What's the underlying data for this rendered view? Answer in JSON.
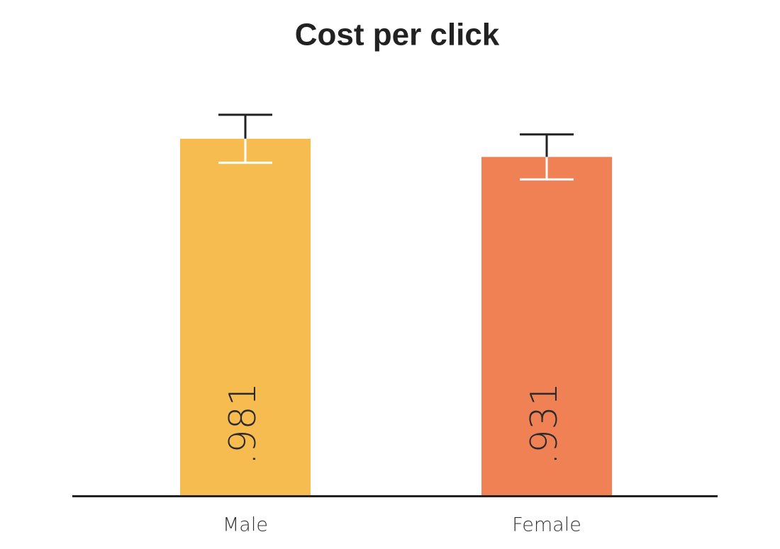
{
  "chart_data": {
    "type": "bar",
    "title": "Cost per click",
    "categories": [
      "Male",
      "Female"
    ],
    "values": [
      0.981,
      0.931
    ],
    "value_labels": [
      ".981",
      ".931"
    ],
    "errors": [
      0.066,
      0.062
    ],
    "colors": [
      "#f6bc4f",
      "#ef8155"
    ]
  }
}
